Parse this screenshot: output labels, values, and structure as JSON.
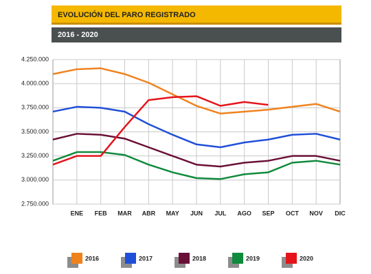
{
  "chart_data": {
    "type": "line",
    "title": "EVOLUCIÓN DEL PARO REGISTRADO",
    "subtitle": "2016 - 2020",
    "categories": [
      null,
      "ENE",
      "FEB",
      "MAR",
      "ABR",
      "MAY",
      "JUN",
      "JUL",
      "AGO",
      "SEP",
      "OCT",
      "NOV",
      "DIC"
    ],
    "series": [
      {
        "name": "2016",
        "color": "#f0821e",
        "values": [
          4100000,
          4150000,
          4160000,
          4100000,
          4010000,
          3890000,
          3770000,
          3690000,
          3710000,
          3730000,
          3760000,
          3790000,
          3710000
        ]
      },
      {
        "name": "2017",
        "color": "#1f4fd8",
        "values": [
          3710000,
          3760000,
          3750000,
          3710000,
          3580000,
          3470000,
          3370000,
          3340000,
          3390000,
          3420000,
          3470000,
          3480000,
          3420000
        ]
      },
      {
        "name": "2018",
        "color": "#6a1037",
        "values": [
          3420000,
          3480000,
          3470000,
          3430000,
          3340000,
          3250000,
          3160000,
          3140000,
          3180000,
          3200000,
          3250000,
          3250000,
          3200000
        ]
      },
      {
        "name": "2019",
        "color": "#108a3c",
        "values": [
          3200000,
          3290000,
          3290000,
          3260000,
          3160000,
          3080000,
          3020000,
          3010000,
          3060000,
          3080000,
          3180000,
          3200000,
          3160000
        ]
      },
      {
        "name": "2020",
        "color": "#e4141a",
        "values": [
          3160000,
          3250000,
          3250000,
          3550000,
          3830000,
          3860000,
          3870000,
          3770000,
          3810000,
          3780000,
          null,
          null,
          null
        ]
      }
    ],
    "ylim": [
      2750000,
      4250000
    ],
    "yticks": [
      {
        "value": 2750000,
        "label": "2.750.000"
      },
      {
        "value": 3000000,
        "label": "3.000.000"
      },
      {
        "value": 3250000,
        "label": "3.250.000"
      },
      {
        "value": 3500000,
        "label": "3.500.000"
      },
      {
        "value": 3750000,
        "label": "3.750.000"
      },
      {
        "value": 4000000,
        "label": "4.000.000"
      },
      {
        "value": 4250000,
        "label": "4.250.000"
      }
    ],
    "grid": true
  }
}
